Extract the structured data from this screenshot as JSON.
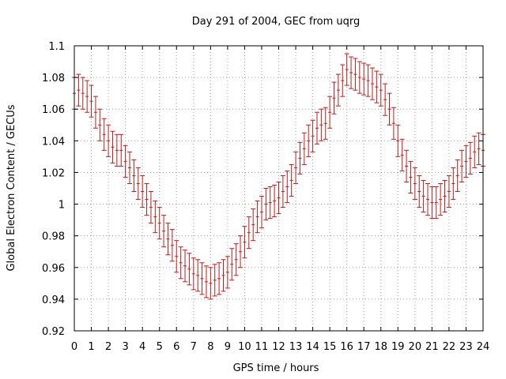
{
  "chart_data": {
    "type": "scatter",
    "title": "Day 291 of 2004, GEC from uqrg",
    "xlabel": "GPS time / hours",
    "ylabel": "Global Electron Content / GECUs",
    "xlim": [
      0,
      24
    ],
    "ylim": [
      0.92,
      1.1
    ],
    "x_ticks": [
      0,
      1,
      2,
      3,
      4,
      5,
      6,
      7,
      8,
      9,
      10,
      11,
      12,
      13,
      14,
      15,
      16,
      17,
      18,
      19,
      20,
      21,
      22,
      23,
      24
    ],
    "y_ticks": [
      0.92,
      0.94,
      0.96,
      0.98,
      1.0,
      1.02,
      1.04,
      1.06,
      1.08,
      1.1
    ],
    "x_tick_labels": [
      "0",
      "1",
      "2",
      "3",
      "4",
      "5",
      "6",
      "7",
      "8",
      "9",
      "10",
      "11",
      "12",
      "13",
      "14",
      "15",
      "16",
      "17",
      "18",
      "19",
      "20",
      "21",
      "22",
      "23",
      "24"
    ],
    "y_tick_labels": [
      "0.92",
      "0.94",
      "0.96",
      "0.98",
      "1",
      "1.02",
      "1.04",
      "1.06",
      "1.08",
      "1.1"
    ],
    "grid": true,
    "error": 0.01,
    "series": [
      {
        "name": "GEC",
        "color": "#c41a1a",
        "x": [
          0,
          0.25,
          0.5,
          0.75,
          1,
          1.25,
          1.5,
          1.75,
          2,
          2.25,
          2.5,
          2.75,
          3,
          3.25,
          3.5,
          3.75,
          4,
          4.25,
          4.5,
          4.75,
          5,
          5.25,
          5.5,
          5.75,
          6,
          6.25,
          6.5,
          6.75,
          7,
          7.25,
          7.5,
          7.75,
          8,
          8.25,
          8.5,
          8.75,
          9,
          9.25,
          9.5,
          9.75,
          10,
          10.25,
          10.5,
          10.75,
          11,
          11.25,
          11.5,
          11.75,
          12,
          12.25,
          12.5,
          12.75,
          13,
          13.25,
          13.5,
          13.75,
          14,
          14.25,
          14.5,
          14.75,
          15,
          15.25,
          15.5,
          15.75,
          16,
          16.25,
          16.5,
          16.75,
          17,
          17.25,
          17.5,
          17.75,
          18,
          18.25,
          18.5,
          18.75,
          19,
          19.25,
          19.5,
          19.75,
          20,
          20.25,
          20.5,
          20.75,
          21,
          21.25,
          21.5,
          21.75,
          22,
          22.25,
          22.5,
          22.75,
          23,
          23.25,
          23.5,
          23.75,
          24
        ],
        "y": [
          1.07,
          1.072,
          1.07,
          1.068,
          1.065,
          1.058,
          1.05,
          1.044,
          1.04,
          1.036,
          1.034,
          1.034,
          1.027,
          1.023,
          1.018,
          1.013,
          1.008,
          1.003,
          0.998,
          0.992,
          0.988,
          0.983,
          0.978,
          0.974,
          0.967,
          0.963,
          0.961,
          0.959,
          0.956,
          0.955,
          0.953,
          0.951,
          0.95,
          0.952,
          0.953,
          0.955,
          0.957,
          0.962,
          0.965,
          0.97,
          0.976,
          0.982,
          0.987,
          0.992,
          0.995,
          1.0,
          1.001,
          1.002,
          1.004,
          1.008,
          1.011,
          1.015,
          1.023,
          1.029,
          1.035,
          1.04,
          1.043,
          1.048,
          1.05,
          1.051,
          1.058,
          1.067,
          1.072,
          1.078,
          1.085,
          1.083,
          1.082,
          1.08,
          1.079,
          1.078,
          1.076,
          1.074,
          1.072,
          1.066,
          1.06,
          1.051,
          1.04,
          1.031,
          1.024,
          1.017,
          1.013,
          1.008,
          1.005,
          1.003,
          1.001,
          1.001,
          1.003,
          1.005,
          1.008,
          1.013,
          1.018,
          1.024,
          1.027,
          1.029,
          1.033,
          1.035,
          1.034
        ]
      }
    ]
  }
}
